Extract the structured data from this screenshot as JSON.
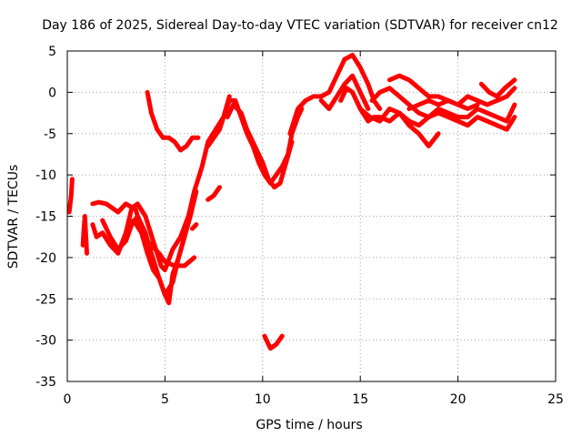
{
  "chart_data": {
    "type": "line",
    "title": "Day 186 of 2025, Sidereal Day-to-day VTEC variation (SDTVAR) for receiver cn12",
    "xlabel": "GPS time / hours",
    "ylabel": "SDTVAR / TECUs",
    "xlim": [
      0,
      25
    ],
    "ylim": [
      -35,
      5
    ],
    "xticks": [
      0,
      5,
      10,
      15,
      20,
      25
    ],
    "yticks": [
      5,
      0,
      -5,
      -10,
      -15,
      -20,
      -25,
      -30,
      -35
    ],
    "grid": true,
    "color": "#ff0000",
    "series": [
      {
        "name": "s1",
        "x": [
          0.1,
          0.2,
          0.25
        ],
        "y": [
          -14.5,
          -12.5,
          -10.5
        ]
      },
      {
        "name": "s2",
        "x": [
          0.8,
          0.85,
          0.9,
          1.0
        ],
        "y": [
          -18.5,
          -16.5,
          -15.0,
          -19.5
        ]
      },
      {
        "name": "s3",
        "x": [
          1.3,
          1.6,
          2.0,
          2.3,
          2.6,
          3.0,
          3.5,
          3.9,
          4.3,
          4.7,
          5.0,
          5.5,
          6.0,
          6.5
        ],
        "y": [
          -13.5,
          -13.3,
          -13.5,
          -14.0,
          -14.5,
          -13.5,
          -14.2,
          -17.5,
          -18.5,
          -19.5,
          -20.5,
          -21.0,
          -21.0,
          -20.0
        ]
      },
      {
        "name": "s4",
        "x": [
          1.3,
          1.5,
          1.8,
          2.2,
          2.6,
          3.0,
          3.3,
          3.6,
          4.0,
          4.4,
          4.8,
          5.0,
          5.4,
          5.8,
          6.2,
          6.5,
          6.9,
          7.2,
          7.6,
          8.0,
          8.3
        ],
        "y": [
          -16.0,
          -17.5,
          -17.0,
          -18.5,
          -19.5,
          -17.0,
          -14.0,
          -13.5,
          -15.0,
          -18.0,
          -21.0,
          -21.5,
          -19.0,
          -17.5,
          -15.0,
          -12.0,
          -9.0,
          -6.0,
          -4.5,
          -3.0,
          -0.5
        ]
      },
      {
        "name": "s5",
        "x": [
          1.8,
          2.2,
          2.6,
          3.0,
          3.3,
          3.6,
          4.0,
          4.3,
          4.7,
          5.0,
          5.4,
          5.7,
          6.0,
          6.3,
          6.6
        ],
        "y": [
          -15.5,
          -17.5,
          -19.0,
          -18.0,
          -16.0,
          -15.0,
          -17.0,
          -19.5,
          -22.5,
          -24.5,
          -23.0,
          -20.0,
          -17.5,
          -15.0,
          -12.0
        ]
      },
      {
        "name": "s6",
        "x": [
          3.0,
          3.4,
          3.8,
          4.1,
          4.4,
          4.7,
          5.0,
          5.2,
          5.4,
          5.7,
          6.0
        ],
        "y": [
          -17.5,
          -15.5,
          -17.0,
          -19.5,
          -21.5,
          -22.5,
          -24.5,
          -25.5,
          -22.0,
          -20.0,
          -17.5
        ]
      },
      {
        "name": "s7",
        "x": [
          4.1,
          4.3,
          4.6,
          4.9,
          5.2,
          5.5,
          5.8,
          6.1,
          6.4,
          6.7
        ],
        "y": [
          0.0,
          -2.5,
          -4.5,
          -5.5,
          -5.5,
          -6.0,
          -7.0,
          -6.5,
          -5.5,
          -5.5
        ]
      },
      {
        "name": "s8",
        "x": [
          6.4,
          6.6
        ],
        "y": [
          -16.5,
          -16.0
        ]
      },
      {
        "name": "s9",
        "x": [
          7.2,
          7.5,
          7.8,
          8.0,
          8.3,
          8.6,
          8.9,
          9.2,
          9.5,
          9.8,
          10.1,
          10.4,
          10.7,
          11.0,
          11.3,
          11.5,
          11.8,
          12.0
        ],
        "y": [
          -6.5,
          -5.5,
          -4.5,
          -3.0,
          -1.0,
          -1.0,
          -3.0,
          -5.0,
          -6.5,
          -8.5,
          -10.0,
          -11.0,
          -10.0,
          -9.0,
          -7.5,
          -5.0,
          -3.0,
          -2.0
        ]
      },
      {
        "name": "s10",
        "x": [
          8.2,
          8.5,
          8.9,
          9.2,
          9.6,
          10.0,
          10.3,
          10.6,
          10.9,
          11.2,
          11.5
        ],
        "y": [
          -3.0,
          -1.5,
          -2.5,
          -4.5,
          -6.5,
          -8.5,
          -10.5,
          -11.5,
          -11.0,
          -8.5,
          -6.0
        ]
      },
      {
        "name": "s11",
        "x": [
          7.2,
          7.5,
          7.8
        ],
        "y": [
          -13.0,
          -12.5,
          -11.5
        ]
      },
      {
        "name": "s12",
        "x": [
          10.1,
          10.4,
          10.7,
          11.0
        ],
        "y": [
          -29.5,
          -31.0,
          -30.5,
          -29.5
        ]
      },
      {
        "name": "s13",
        "x": [
          11.4,
          11.8,
          12.2,
          12.6,
          13.0,
          13.4,
          13.8,
          14.2,
          14.6,
          15.0,
          15.4,
          15.7,
          16.0
        ],
        "y": [
          -5.0,
          -2.0,
          -1.0,
          -0.5,
          -0.5,
          0.0,
          2.0,
          4.0,
          4.5,
          3.0,
          1.0,
          -1.0,
          -2.0
        ]
      },
      {
        "name": "s14",
        "x": [
          13.0,
          13.4,
          13.8,
          14.2,
          14.6,
          15.0,
          15.4
        ],
        "y": [
          -1.0,
          -2.0,
          -0.5,
          1.0,
          2.0,
          0.0,
          -2.0
        ]
      },
      {
        "name": "s15",
        "x": [
          14.0,
          14.3,
          14.6,
          15.0,
          15.4,
          15.7,
          16.0,
          16.5,
          17.0,
          17.5,
          18.0,
          18.5,
          19.0
        ],
        "y": [
          -1.0,
          0.5,
          0.0,
          -2.0,
          -3.5,
          -3.0,
          -3.0,
          -3.5,
          -2.5,
          -4.0,
          -5.0,
          -6.5,
          -5.0
        ]
      },
      {
        "name": "s16",
        "x": [
          15.0,
          15.5,
          16.0,
          16.5,
          17.0,
          17.5,
          18.0,
          18.5,
          19.0,
          19.5,
          20.0,
          20.5,
          21.0,
          21.5,
          22.0,
          22.5,
          22.9
        ],
        "y": [
          -2.0,
          -3.0,
          -3.5,
          -2.0,
          -2.5,
          -3.5,
          -4.0,
          -3.0,
          -2.5,
          -3.0,
          -3.5,
          -4.0,
          -3.0,
          -3.5,
          -4.0,
          -4.5,
          -3.0
        ]
      },
      {
        "name": "s17",
        "x": [
          15.6,
          16.0,
          16.5,
          17.0,
          17.5,
          18.0,
          18.5,
          19.0,
          19.5,
          20.0,
          20.5,
          21.0,
          21.5,
          22.0,
          22.5,
          22.9
        ],
        "y": [
          -1.0,
          0.0,
          0.5,
          -0.5,
          -1.5,
          -2.5,
          -3.0,
          -2.0,
          -2.5,
          -3.0,
          -3.0,
          -2.0,
          -2.5,
          -3.0,
          -3.5,
          -1.5
        ]
      },
      {
        "name": "s18",
        "x": [
          16.5,
          17.0,
          17.5,
          18.0,
          18.5,
          19.0,
          19.5,
          20.0,
          20.5,
          21.0,
          21.5,
          22.0,
          22.5,
          22.9
        ],
        "y": [
          1.5,
          2.0,
          1.5,
          0.5,
          -0.5,
          -0.5,
          -1.0,
          -1.5,
          -0.5,
          -1.0,
          -1.5,
          -1.0,
          -0.5,
          0.5
        ]
      },
      {
        "name": "s19",
        "x": [
          17.5,
          18.0,
          18.5,
          19.0,
          19.5,
          20.0,
          20.5,
          21.0
        ],
        "y": [
          -2.0,
          -1.5,
          -1.0,
          -1.5,
          -1.0,
          -1.5,
          -2.0,
          -1.5
        ]
      },
      {
        "name": "s20",
        "x": [
          21.2,
          21.6,
          22.0,
          22.4,
          22.9
        ],
        "y": [
          1.0,
          0.0,
          -0.5,
          0.5,
          1.5
        ]
      }
    ]
  }
}
